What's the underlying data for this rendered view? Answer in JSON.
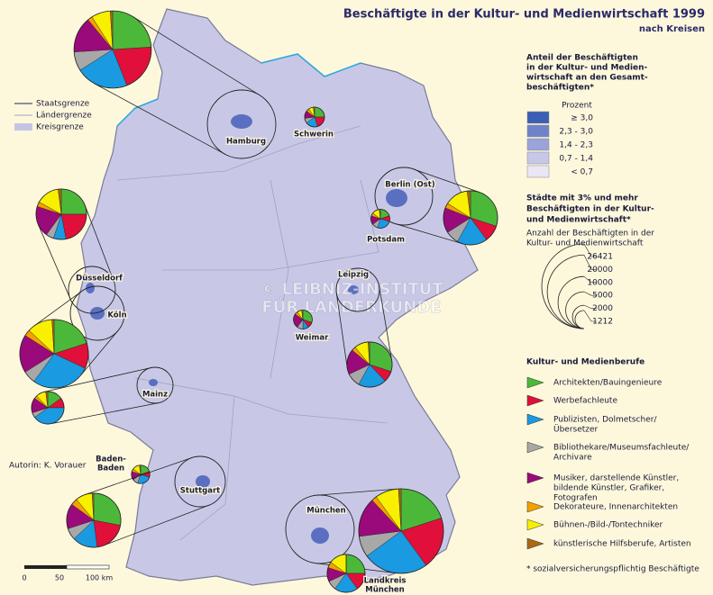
{
  "map": {
    "title": "Beschäftigte in der Kultur- und Medienwirtschaft 1999",
    "subtitle": "nach Kreisen",
    "boundaries": [
      {
        "label": "Staatsgrenze",
        "color": "#6a6a8a"
      },
      {
        "label": "Ländergrenze",
        "color": "#a0a0c0"
      },
      {
        "label": "Kreisgrenze",
        "color": "#c4c4e4"
      }
    ],
    "share_legend": {
      "title": [
        "Anteil der Beschäftigten",
        "in der Kultur- und Medien-",
        "wirtschaft an den Gesamt-",
        "beschäftigten*"
      ],
      "unit": "Prozent",
      "classes": [
        {
          "label": "≥ 3,0",
          "color": "#3a5fb4"
        },
        {
          "label": "2,3 - 3,0",
          "color": "#6f82cc"
        },
        {
          "label": "1,4 - 2,3",
          "color": "#9aa3da"
        },
        {
          "label": "0,7 - 1,4",
          "color": "#c6c8ea"
        },
        {
          "label": "< 0,7",
          "color": "#ebe6f6"
        }
      ]
    },
    "size_legend": {
      "title": [
        "Städte mit 3% und mehr",
        "Beschäftigten in der Kultur-",
        "und Medienwirtschaft*"
      ],
      "subtitle": [
        "Anzahl der Beschäftigten in der",
        "Kultur- und Medienwirtschaft"
      ],
      "values": [
        26421,
        20000,
        10000,
        5000,
        2000,
        1212
      ]
    },
    "categories_title": "Kultur- und Medienberufe",
    "categories": [
      {
        "label": [
          "Architekten/Bauingenieure"
        ],
        "color": "#4cb83a"
      },
      {
        "label": [
          "Werbefachleute"
        ],
        "color": "#e0103a"
      },
      {
        "label": [
          "Publizisten, Dolmetscher/",
          "Übersetzer"
        ],
        "color": "#1a9ae0"
      },
      {
        "label": [
          "Bibliothekare/Museumsfachleute/",
          "Archivare"
        ],
        "color": "#a8a8a8"
      },
      {
        "label": [
          "Musiker, darstellende Künstler,",
          "bildende Künstler, Grafiker,",
          "Fotografen"
        ],
        "color": "#9a0a7a"
      },
      {
        "label": [
          "Dekorateure, Innenarchitekten"
        ],
        "color": "#f5a000"
      },
      {
        "label": [
          "Bühnen-/Bild-/Tontechniker"
        ],
        "color": "#f8f000"
      },
      {
        "label": [
          "künstlerische Hilfsberufe, Artisten"
        ],
        "color": "#a86a10"
      }
    ],
    "cities": [
      {
        "name": [
          "Hamburg"
        ],
        "employees": 22000,
        "shares": [
          24,
          20,
          22,
          8,
          15,
          2,
          8,
          1
        ]
      },
      {
        "name": [
          "Schwerin"
        ],
        "employees": 1450,
        "shares": [
          25,
          20,
          20,
          8,
          12,
          5,
          8,
          2
        ]
      },
      {
        "name": [
          "Berlin (Ost)"
        ],
        "employees": 10800,
        "shares": [
          30,
          10,
          18,
          8,
          15,
          3,
          14,
          2
        ]
      },
      {
        "name": [
          "Potsdam"
        ],
        "employees": 1300,
        "shares": [
          20,
          10,
          25,
          10,
          15,
          5,
          13,
          2
        ]
      },
      {
        "name": [
          "Düsseldorf"
        ],
        "employees": 9400,
        "shares": [
          25,
          22,
          8,
          5,
          20,
          3,
          15,
          2
        ]
      },
      {
        "name": [
          "Köln"
        ],
        "employees": 17300,
        "shares": [
          20,
          12,
          28,
          6,
          18,
          3,
          12,
          1
        ]
      },
      {
        "name": [
          "Leipzig"
        ],
        "employees": 7500,
        "shares": [
          30,
          8,
          20,
          10,
          18,
          3,
          10,
          1
        ]
      },
      {
        "name": [
          "Weimar"
        ],
        "employees": 1300,
        "shares": [
          30,
          10,
          10,
          10,
          25,
          5,
          8,
          2
        ]
      },
      {
        "name": [
          "Mainz"
        ],
        "employees": 3900,
        "shares": [
          15,
          10,
          40,
          5,
          15,
          3,
          10,
          2
        ]
      },
      {
        "name": [
          "Baden-",
          "Baden"
        ],
        "employees": 1250,
        "shares": [
          20,
          10,
          25,
          10,
          15,
          5,
          13,
          2
        ]
      },
      {
        "name": [
          "Stuttgart"
        ],
        "employees": 10800,
        "shares": [
          28,
          20,
          15,
          7,
          15,
          4,
          10,
          1
        ]
      },
      {
        "name": [
          "München"
        ],
        "employees": 26421,
        "shares": [
          20,
          20,
          25,
          8,
          15,
          2,
          9,
          1
        ]
      },
      {
        "name": [
          "Landkreis",
          "München"
        ],
        "employees": 5300,
        "shares": [
          25,
          15,
          20,
          8,
          12,
          5,
          15,
          0
        ]
      }
    ],
    "footnote": "* sozialversicherungspflichtig Beschäftigte",
    "author": "Autorin:  K. Vorauer",
    "watermark": [
      "© LEIBNIZ-INSTITUT",
      "FÜR LÄNDERKUNDE"
    ],
    "scale": [
      "0",
      "50",
      "100 km"
    ]
  }
}
